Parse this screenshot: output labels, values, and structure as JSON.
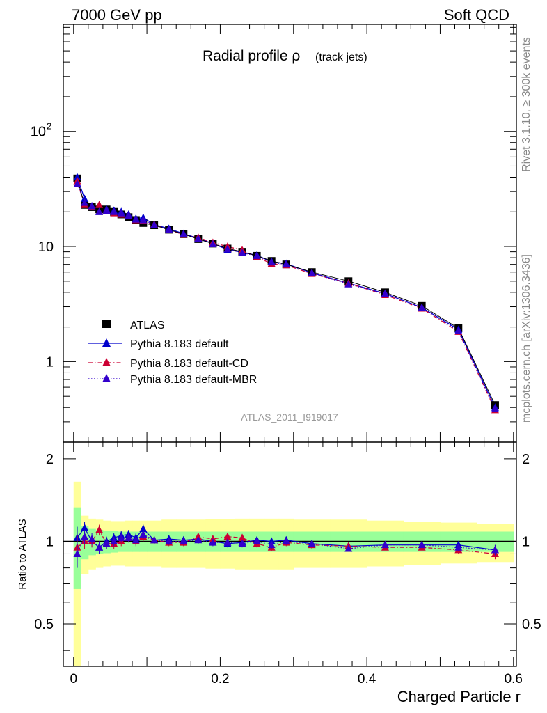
{
  "header": {
    "left": "7000 GeV pp",
    "right": "Soft QCD"
  },
  "side_labels": {
    "rivet": "Rivet 3.1.10, ≥ 300k events",
    "mcplots": "mcplots.cern.ch [arXiv:1306.3436]"
  },
  "chart_data": {
    "type": "scatter",
    "title": "Radial profile ρ",
    "title_suffix": "(track jets)",
    "analysis_label": "ATLAS_2011_I919017",
    "xlabel": "Charged Particle r",
    "ylabel_ratio": "Ratio to ATLAS",
    "xlim": [
      -0.014,
      0.604
    ],
    "ylim_main": [
      0.2,
      850
    ],
    "ylim_ratio": [
      0.35,
      2.3
    ],
    "x_ticks": [
      {
        "v": 0,
        "label": "0"
      },
      {
        "v": 0.2,
        "label": "0.2"
      },
      {
        "v": 0.4,
        "label": "0.4"
      },
      {
        "v": 0.6,
        "label": "0.6"
      }
    ],
    "y_ticks_main": [
      {
        "v": 1,
        "label": "1"
      },
      {
        "v": 10,
        "label": "10"
      },
      {
        "v": 100,
        "label": "10",
        "sup": "2"
      }
    ],
    "y_ticks_ratio": [
      {
        "v": 0.5,
        "label": "0.5"
      },
      {
        "v": 1,
        "label": "1"
      },
      {
        "v": 2,
        "label": "2"
      }
    ],
    "x": [
      0.005,
      0.015,
      0.025,
      0.035,
      0.045,
      0.055,
      0.065,
      0.075,
      0.085,
      0.095,
      0.11,
      0.13,
      0.15,
      0.17,
      0.19,
      0.21,
      0.23,
      0.25,
      0.27,
      0.29,
      0.325,
      0.375,
      0.425,
      0.475,
      0.525,
      0.575
    ],
    "x_edges": [
      0.0,
      0.01,
      0.02,
      0.03,
      0.04,
      0.05,
      0.06,
      0.07,
      0.08,
      0.09,
      0.1,
      0.12,
      0.14,
      0.16,
      0.18,
      0.2,
      0.22,
      0.24,
      0.26,
      0.28,
      0.3,
      0.35,
      0.4,
      0.45,
      0.5,
      0.55,
      0.6
    ],
    "series": [
      {
        "name": "ATLAS",
        "color": "#000000",
        "marker": "square",
        "values": [
          39,
          23,
          22,
          21,
          21,
          20,
          19,
          18,
          17,
          16,
          15.3,
          14,
          12.8,
          11.6,
          10.6,
          9.6,
          9.0,
          8.3,
          7.5,
          7.0,
          6.0,
          5.0,
          4.0,
          3.05,
          1.95,
          0.42
        ]
      },
      {
        "name": "Pythia 8.183 default",
        "color": "#0000cc",
        "marker": "triangle",
        "dash": "",
        "values": [
          40,
          26,
          22,
          20,
          21,
          20.5,
          20,
          19,
          17.5,
          17.8,
          15.5,
          14.3,
          12.9,
          11.8,
          10.6,
          9.4,
          8.9,
          8.4,
          7.4,
          7.1,
          5.9,
          4.8,
          3.9,
          2.95,
          1.9,
          0.4
        ]
      },
      {
        "name": "Pythia 8.183 default-CD",
        "color": "#cc0033",
        "marker": "triangle",
        "dash": "6,3,1.5,3",
        "values": [
          37,
          23,
          22,
          23,
          20.5,
          19.5,
          19,
          18.5,
          17,
          16.7,
          15.5,
          13.9,
          12.7,
          12.0,
          10.8,
          10.0,
          9.3,
          8.1,
          7.1,
          6.9,
          5.8,
          4.8,
          3.8,
          2.9,
          1.82,
          0.38
        ]
      },
      {
        "name": "Pythia 8.183 default-MBR",
        "color": "#3300cc",
        "marker": "triangle",
        "dash": "1.5,2.5",
        "values": [
          35,
          24,
          22.5,
          20,
          20.5,
          20,
          19.5,
          18.5,
          17.2,
          17,
          15.4,
          14,
          12.8,
          11.7,
          10.5,
          9.5,
          8.8,
          8.3,
          7.3,
          7.0,
          5.9,
          4.7,
          3.9,
          2.95,
          1.85,
          0.39
        ]
      }
    ],
    "ratio_series": [
      {
        "name": "Pythia 8.183 default",
        "values": [
          1.03,
          1.12,
          1.0,
          0.95,
          1.0,
          1.03,
          1.05,
          1.06,
          1.03,
          1.11,
          1.01,
          1.02,
          1.01,
          1.02,
          1.0,
          0.98,
          0.99,
          1.01,
          1.0,
          1.01,
          0.98,
          0.96,
          0.97,
          0.97,
          0.97,
          0.93
        ]
      },
      {
        "name": "Pythia 8.183 default-CD",
        "values": [
          0.95,
          1.0,
          1.0,
          1.1,
          0.98,
          0.98,
          1.0,
          1.03,
          1.0,
          1.04,
          1.01,
          0.99,
          0.99,
          1.04,
          1.02,
          1.04,
          1.03,
          0.98,
          0.95,
          0.99,
          0.97,
          0.96,
          0.95,
          0.95,
          0.93,
          0.9
        ]
      },
      {
        "name": "Pythia 8.183 default-MBR",
        "values": [
          0.9,
          1.04,
          1.02,
          0.95,
          0.98,
          1.0,
          1.03,
          1.03,
          1.01,
          1.06,
          1.01,
          1.0,
          1.0,
          1.01,
          0.99,
          0.99,
          0.98,
          1.0,
          0.97,
          1.0,
          0.98,
          0.94,
          0.97,
          0.97,
          0.95,
          0.93
        ]
      }
    ],
    "ratio_errors": [
      0.1,
      0.06,
      0.05,
      0.05,
      0.04,
      0.04,
      0.04,
      0.04,
      0.04,
      0.04,
      0.03,
      0.03,
      0.03,
      0.03,
      0.03,
      0.03,
      0.03,
      0.03,
      0.03,
      0.03,
      0.03,
      0.02,
      0.02,
      0.02,
      0.03,
      0.04
    ],
    "band_green_halfwidth": [
      0.33,
      0.14,
      0.11,
      0.1,
      0.095,
      0.09,
      0.085,
      0.085,
      0.085,
      0.085,
      0.085,
      0.085,
      0.085,
      0.085,
      0.085,
      0.085,
      0.085,
      0.085,
      0.085,
      0.085,
      0.085,
      0.085,
      0.085,
      0.085,
      0.085,
      0.085
    ],
    "band_yellow_halfwidth": [
      0.65,
      0.24,
      0.21,
      0.2,
      0.19,
      0.185,
      0.185,
      0.19,
      0.19,
      0.19,
      0.19,
      0.2,
      0.2,
      0.2,
      0.205,
      0.205,
      0.21,
      0.21,
      0.21,
      0.21,
      0.2,
      0.2,
      0.19,
      0.18,
      0.17,
      0.16
    ],
    "legend": {
      "position": "bottom-left",
      "entries": [
        "ATLAS",
        "Pythia 8.183 default",
        "Pythia 8.183 default-CD",
        "Pythia 8.183 default-MBR"
      ]
    }
  }
}
